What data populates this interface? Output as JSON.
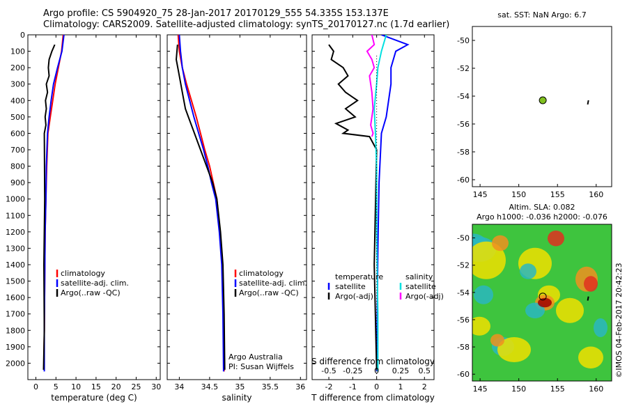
{
  "header": {
    "line1": "Argo profile: CS 5904920_75 28-Jan-2017 20170129_555 54.335S 153.137E",
    "line2": "Climatology: CARS2009. Satellite-adjusted climatology: synTS_20170127.nc (1.7d earlier)"
  },
  "colors": {
    "climatology": "#ff0000",
    "satellite": "#0000ff",
    "argo": "#000000",
    "salinity_sat": "#00e0e0",
    "salinity_argo": "#ff00ff",
    "marker": "#80c020"
  },
  "chart_data": [
    {
      "type": "line",
      "panel": "temperature",
      "xlabel": "temperature (deg C)",
      "xlim": [
        -2,
        31
      ],
      "ylim": [
        2100,
        0
      ],
      "xticks": [
        "0",
        "5",
        "10",
        "15",
        "20",
        "25",
        "30"
      ],
      "yticks": [
        "0",
        "100",
        "200",
        "300",
        "400",
        "500",
        "600",
        "700",
        "800",
        "900",
        "1000",
        "1100",
        "1200",
        "1300",
        "1400",
        "1500",
        "1600",
        "1700",
        "1800",
        "1900",
        "2000"
      ],
      "legend": [
        "climatology",
        "satellite-adj. clim.",
        "Argo(..raw -QC)"
      ],
      "series": [
        {
          "name": "climatology",
          "color": "#ff0000",
          "x": [
            6.8,
            6.4,
            5.6,
            4.8,
            4.2,
            3.6,
            3.0,
            2.7,
            2.5,
            2.3,
            2.2,
            2.1,
            2.0
          ],
          "y": [
            0,
            100,
            200,
            300,
            400,
            500,
            600,
            800,
            1000,
            1200,
            1500,
            1800,
            2000
          ]
        },
        {
          "name": "satellite-adj. clim.",
          "color": "#0000ff",
          "x": [
            7.0,
            6.5,
            5.4,
            4.4,
            3.8,
            3.3,
            2.9,
            2.6,
            2.5,
            2.3,
            2.2,
            2.1,
            2.1
          ],
          "y": [
            0,
            100,
            200,
            300,
            400,
            500,
            600,
            800,
            1000,
            1200,
            1500,
            1800,
            2050
          ]
        },
        {
          "name": "Argo(..raw -QC)",
          "color": "#000000",
          "x": [
            4.7,
            4.0,
            3.3,
            3.1,
            3.3,
            2.6,
            2.9,
            2.4,
            2.6,
            2.3,
            2.5,
            2.1,
            2.2,
            2.0,
            2.1,
            1.9
          ],
          "y": [
            60,
            100,
            150,
            200,
            250,
            300,
            350,
            400,
            450,
            500,
            550,
            600,
            1000,
            1400,
            1800,
            2040
          ]
        }
      ]
    },
    {
      "type": "line",
      "panel": "salinity",
      "xlabel": "salinity",
      "xlim": [
        33.8,
        36.1
      ],
      "ylim": [
        2100,
        0
      ],
      "xticks": [
        "34",
        "34.5",
        "35",
        "35.5",
        "36"
      ],
      "legend": [
        "climatology",
        "satellite-adj. clim.",
        "Argo(..raw -QC)"
      ],
      "annotations": [
        "Argo Australia",
        "PI: Susan Wijffels"
      ],
      "series": [
        {
          "name": "climatology",
          "color": "#ff0000",
          "x": [
            33.98,
            34.0,
            34.05,
            34.12,
            34.2,
            34.28,
            34.35,
            34.42,
            34.5,
            34.56,
            34.62,
            34.67,
            34.71,
            34.73,
            34.74
          ],
          "y": [
            0,
            100,
            200,
            300,
            400,
            500,
            600,
            700,
            800,
            900,
            1000,
            1200,
            1400,
            1700,
            2050
          ]
        },
        {
          "name": "satellite-adj. clim.",
          "color": "#0000ff",
          "x": [
            34.0,
            34.02,
            34.05,
            34.1,
            34.17,
            34.24,
            34.32,
            34.4,
            34.47,
            34.53,
            34.6,
            34.66,
            34.7,
            34.72,
            34.73
          ],
          "y": [
            0,
            100,
            200,
            300,
            400,
            500,
            600,
            700,
            800,
            900,
            1000,
            1200,
            1400,
            1700,
            2050
          ]
        },
        {
          "name": "Argo(..raw -QC)",
          "color": "#000000",
          "x": [
            33.97,
            33.95,
            34.0,
            34.05,
            34.1,
            34.15,
            34.25,
            34.35,
            34.45,
            34.55,
            34.62,
            34.68,
            34.72,
            34.74,
            34.75
          ],
          "y": [
            60,
            150,
            250,
            350,
            450,
            500,
            600,
            700,
            800,
            900,
            1000,
            1200,
            1400,
            1700,
            2040
          ]
        }
      ]
    },
    {
      "type": "line",
      "panel": "differences",
      "xlabel": "T difference from climatology",
      "xlabel_top": "S difference from climatology",
      "xlim": [
        -2.7,
        2.4
      ],
      "ylim": [
        2100,
        0
      ],
      "xticks": [
        "-2",
        "-1",
        "0",
        "1",
        "2"
      ],
      "xticks_top": [
        "-0.5",
        "-0.25",
        "0",
        "0.25",
        "0.5"
      ],
      "legend": [
        "temperature",
        "satellite",
        "Argo(-adj)",
        "salinity",
        "satellite",
        "Argo(-adj)"
      ],
      "series": [
        {
          "name": "temperature satellite",
          "color": "#0000ff",
          "x": [
            0.2,
            1.3,
            0.8,
            0.6,
            0.6,
            0.5,
            0.4,
            0.2,
            0.1,
            0.05,
            0.0
          ],
          "y": [
            0,
            60,
            100,
            200,
            300,
            400,
            500,
            600,
            900,
            1300,
            2050
          ]
        },
        {
          "name": "temperature Argo(-adj)",
          "color": "#000000",
          "x": [
            -2.0,
            -1.8,
            -1.9,
            -1.4,
            -1.2,
            -1.6,
            -1.3,
            -0.8,
            -1.3,
            -0.9,
            -1.7,
            -1.2,
            -1.4,
            -0.3,
            0.0,
            -0.1,
            0.0
          ],
          "y": [
            60,
            100,
            150,
            200,
            250,
            300,
            350,
            400,
            450,
            500,
            540,
            580,
            600,
            620,
            700,
            1400,
            2040
          ]
        },
        {
          "name": "salinity satellite",
          "color": "#00e0e0",
          "x": [
            0.4,
            0.2,
            0.05,
            0.0,
            -0.1,
            -0.05,
            0.0,
            0.0,
            0.05,
            0.05
          ],
          "y": [
            0,
            100,
            200,
            300,
            450,
            600,
            800,
            1200,
            1700,
            2050
          ]
        },
        {
          "name": "salinity Argo(-adj)",
          "color": "#ff00ff",
          "x": [
            -0.2,
            -0.1,
            -0.4,
            -0.2,
            -0.1,
            -0.3,
            -0.2,
            -0.15,
            -0.25,
            -0.15,
            -0.2
          ],
          "y": [
            0,
            60,
            100,
            150,
            200,
            250,
            350,
            450,
            550,
            600,
            620
          ]
        }
      ]
    },
    {
      "type": "scatter",
      "panel": "location",
      "title": "sat. SST: NaN Argo: 6.7",
      "xlim": [
        144,
        162
      ],
      "ylim": [
        -60.5,
        -49
      ],
      "xticks": [
        "145",
        "150",
        "155",
        "160"
      ],
      "yticks": [
        "-50",
        "-52",
        "-54",
        "-56",
        "-58",
        "-60"
      ],
      "points": [
        {
          "x": 153.1,
          "y": -54.3
        }
      ]
    },
    {
      "type": "heatmap",
      "panel": "altimetry",
      "title_line1": "Altim. SLA: 0.082",
      "title_line2": "Argo h1000: -0.036 h2000: -0.076",
      "xlim": [
        144,
        162
      ],
      "ylim": [
        -60.5,
        -49
      ],
      "xticks": [
        "145",
        "150",
        "155",
        "160"
      ],
      "yticks": [
        "-50",
        "-52",
        "-54",
        "-56",
        "-58",
        "-60"
      ],
      "points": [
        {
          "x": 153.1,
          "y": -54.3
        }
      ],
      "watermark": "©IMOS 04-Feb-2017 20:42:23"
    }
  ]
}
